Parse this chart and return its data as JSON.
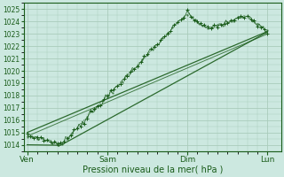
{
  "title": "",
  "xlabel": "Pression niveau de la mer( hPa )",
  "ylabel": "",
  "ylim": [
    1013.5,
    1025.5
  ],
  "yticks": [
    1014,
    1015,
    1016,
    1017,
    1018,
    1019,
    1020,
    1021,
    1022,
    1023,
    1024,
    1025
  ],
  "xtick_labels": [
    "Ven",
    "Sam",
    "Dim",
    "Lun"
  ],
  "xtick_positions": [
    0,
    48,
    96,
    144
  ],
  "xlim": [
    -2,
    152
  ],
  "bg_color": "#cce8e0",
  "grid_color": "#aaccbb",
  "line_color": "#1a5c1a",
  "n_points": 145
}
